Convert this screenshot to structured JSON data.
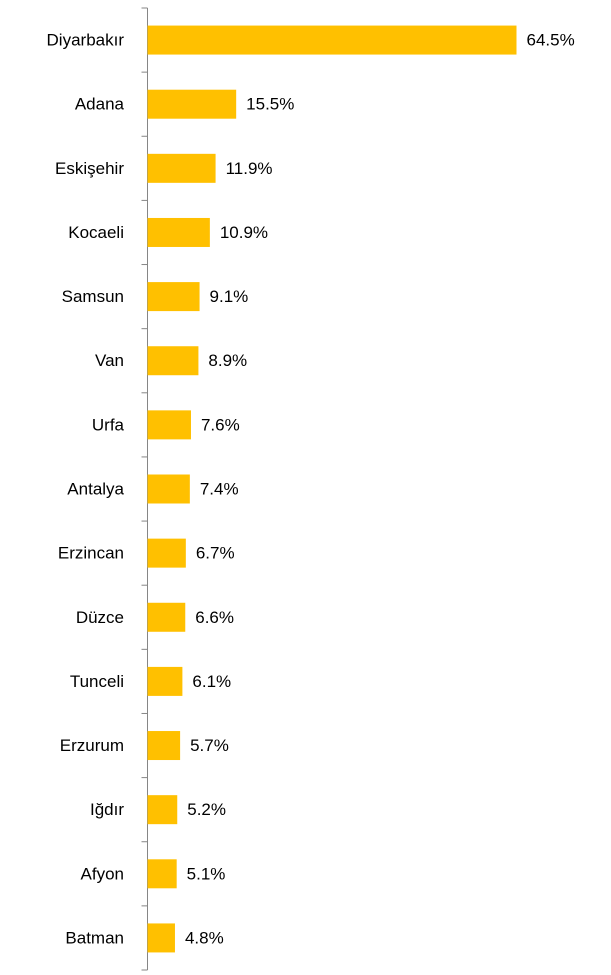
{
  "chart_data": {
    "type": "bar",
    "orientation": "horizontal",
    "categories": [
      "Diyarbakır",
      "Adana",
      "Eskişehir",
      "Kocaeli",
      "Samsun",
      "Van",
      "Urfa",
      "Antalya",
      "Erzincan",
      "Düzce",
      "Tunceli",
      "Erzurum",
      "Iğdır",
      "Afyon",
      "Batman"
    ],
    "values": [
      64.5,
      15.5,
      11.9,
      10.9,
      9.1,
      8.9,
      7.6,
      7.4,
      6.7,
      6.6,
      6.1,
      5.7,
      5.2,
      5.1,
      4.8
    ],
    "value_labels": [
      "64.5%",
      "15.5%",
      "11.9%",
      "10.9%",
      "9.1%",
      "8.9%",
      "7.6%",
      "7.4%",
      "6.7%",
      "6.6%",
      "6.1%",
      "5.7%",
      "5.2%",
      "5.1%",
      "4.8%"
    ],
    "color": "#ffc000"
  }
}
